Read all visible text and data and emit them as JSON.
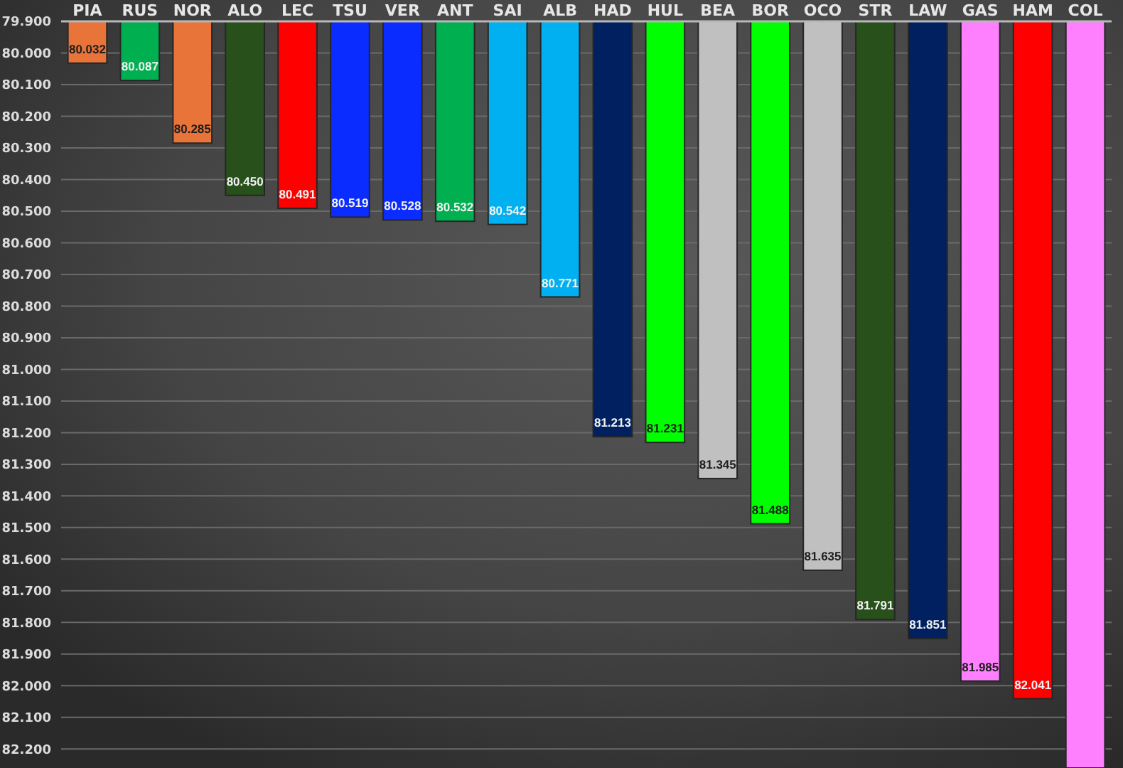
{
  "chart_data": {
    "type": "bar",
    "categories": [
      "PIA",
      "RUS",
      "NOR",
      "ALO",
      "LEC",
      "TSU",
      "VER",
      "ANT",
      "SAI",
      "ALB",
      "HAD",
      "HUL",
      "BEA",
      "BOR",
      "OCO",
      "STR",
      "LAW",
      "GAS",
      "HAM",
      "COL"
    ],
    "values": [
      80.032,
      80.087,
      80.285,
      80.45,
      80.491,
      80.519,
      80.528,
      80.532,
      80.542,
      80.771,
      81.213,
      81.231,
      81.345,
      81.488,
      81.635,
      81.791,
      81.851,
      81.985,
      82.041,
      82.26
    ],
    "value_labels": [
      "80.032",
      "80.087",
      "80.285",
      "80.450",
      "80.491",
      "80.519",
      "80.528",
      "80.532",
      "80.542",
      "80.771",
      "81.213",
      "81.231",
      "81.345",
      "81.488",
      "81.635",
      "81.791",
      "81.851",
      "81.985",
      "82.041",
      null
    ],
    "colors": [
      "#e8743a",
      "#00b050",
      "#e8743a",
      "#27501b",
      "#ff0000",
      "#0a2cff",
      "#0a2cff",
      "#00b050",
      "#00b0f0",
      "#00b0f0",
      "#002060",
      "#00ff00",
      "#c0c0c0",
      "#00ff00",
      "#c0c0c0",
      "#27501b",
      "#002060",
      "#ff80ff",
      "#ff0000",
      "#ff80ff"
    ],
    "ylim": [
      82.26,
      79.9
    ],
    "yticks": [
      {
        "value": 79.9,
        "label": "79.900"
      },
      {
        "value": 80.0,
        "label": "80.000"
      },
      {
        "value": 80.1,
        "label": "80.100"
      },
      {
        "value": 80.2,
        "label": "80.200"
      },
      {
        "value": 80.3,
        "label": "80.300"
      },
      {
        "value": 80.4,
        "label": "80.400"
      },
      {
        "value": 80.5,
        "label": "80.500"
      },
      {
        "value": 80.6,
        "label": "80.600"
      },
      {
        "value": 80.7,
        "label": "80.700"
      },
      {
        "value": 80.8,
        "label": "80.800"
      },
      {
        "value": 80.9,
        "label": "80.900"
      },
      {
        "value": 81.0,
        "label": "81.000"
      },
      {
        "value": 81.1,
        "label": "81.100"
      },
      {
        "value": 81.2,
        "label": "81.200"
      },
      {
        "value": 81.3,
        "label": "81.300"
      },
      {
        "value": 81.4,
        "label": "81.400"
      },
      {
        "value": 81.5,
        "label": "81.500"
      },
      {
        "value": 81.6,
        "label": "81.600"
      },
      {
        "value": 81.7,
        "label": "81.700"
      },
      {
        "value": 81.8,
        "label": "81.800"
      },
      {
        "value": 81.9,
        "label": "81.900"
      },
      {
        "value": 82.0,
        "label": "82.000"
      },
      {
        "value": 82.1,
        "label": "82.100"
      },
      {
        "value": 82.2,
        "label": "82.200"
      }
    ],
    "grid": "y"
  }
}
